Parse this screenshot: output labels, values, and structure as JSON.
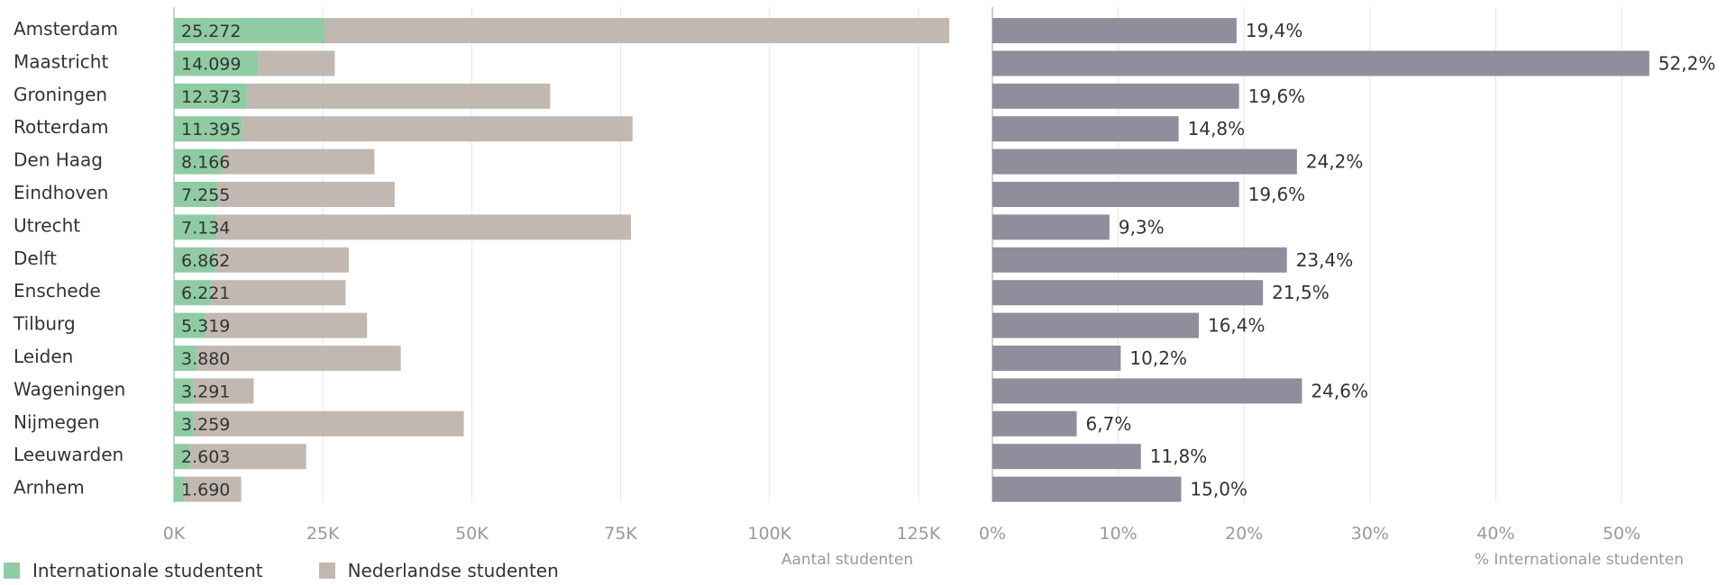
{
  "chart_data": [
    {
      "type": "bar",
      "stacked": true,
      "orientation": "horizontal",
      "categories": [
        "Amsterdam",
        "Maastricht",
        "Groningen",
        "Rotterdam",
        "Den Haag",
        "Eindhoven",
        "Utrecht",
        "Delft",
        "Enschede",
        "Tilburg",
        "Leiden",
        "Wageningen",
        "Nijmegen",
        "Leeuwarden",
        "Arnhem"
      ],
      "series": [
        {
          "name": "Internationale studentent",
          "values": [
            25272,
            14099,
            12373,
            11395,
            8166,
            7255,
            7134,
            6862,
            6221,
            5319,
            3880,
            3291,
            3259,
            2603,
            1690
          ]
        },
        {
          "name": "Nederlandse studenten",
          "values": [
            104900,
            12900,
            50800,
            65600,
            25500,
            29800,
            69600,
            22500,
            22600,
            27100,
            34200,
            10100,
            45400,
            19600,
            9600
          ]
        }
      ],
      "value_labels": [
        "25.272",
        "14.099",
        "12.373",
        "11.395",
        "8.166",
        "7.255",
        "7.134",
        "6.862",
        "6.221",
        "5.319",
        "3.880",
        "3.291",
        "3.259",
        "2.603",
        "1.690"
      ],
      "xlabel": "Aantal studenten",
      "xlim": [
        0,
        130000
      ],
      "xticks": [
        0,
        25000,
        50000,
        75000,
        100000,
        125000
      ],
      "xtick_labels": [
        "0K",
        "25K",
        "50K",
        "75K",
        "100K",
        "125K"
      ],
      "grid": "vertical",
      "colors": {
        "international": "#8fcca4",
        "dutch": "#c1b9b1"
      }
    },
    {
      "type": "bar",
      "orientation": "horizontal",
      "categories": [
        "Amsterdam",
        "Maastricht",
        "Groningen",
        "Rotterdam",
        "Den Haag",
        "Eindhoven",
        "Utrecht",
        "Delft",
        "Enschede",
        "Tilburg",
        "Leiden",
        "Wageningen",
        "Nijmegen",
        "Leeuwarden",
        "Arnhem"
      ],
      "values": [
        19.4,
        52.2,
        19.6,
        14.8,
        24.2,
        19.6,
        9.3,
        23.4,
        21.5,
        16.4,
        10.2,
        24.6,
        6.7,
        11.8,
        15.0
      ],
      "value_labels": [
        "19,4%",
        "52,2%",
        "19,6%",
        "14,8%",
        "24,2%",
        "19,6%",
        "9,3%",
        "23,4%",
        "21,5%",
        "16,4%",
        "10,2%",
        "24,6%",
        "6,7%",
        "11,8%",
        "15,0%"
      ],
      "xlabel": "% Internationale studenten",
      "xlim": [
        0,
        52.5
      ],
      "xticks": [
        0,
        10,
        20,
        30,
        40,
        50
      ],
      "xtick_labels": [
        "0%",
        "10%",
        "20%",
        "30%",
        "40%",
        "50%"
      ],
      "grid": "vertical",
      "colors": {
        "bar": "#8e8e9c"
      }
    }
  ],
  "legend": {
    "items": [
      {
        "label": "Internationale studentent",
        "color": "#8fcca4"
      },
      {
        "label": "Nederlandse studenten",
        "color": "#c1b9b1"
      }
    ],
    "placement": "bottom-left"
  }
}
